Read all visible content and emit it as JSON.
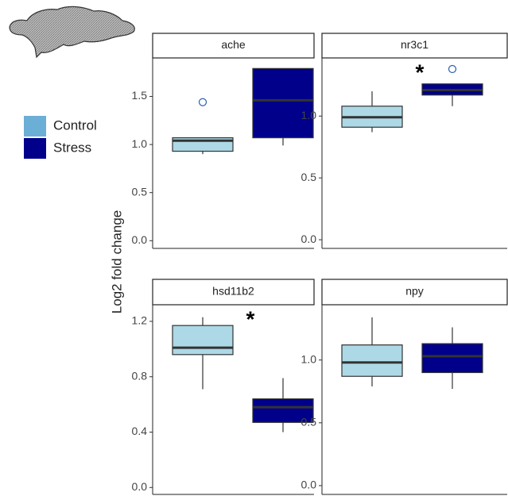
{
  "y_label": "Log2 fold change",
  "legend": [
    {
      "name": "Control",
      "color": "#add8e6"
    },
    {
      "name": "Stress",
      "color": "#00008b"
    }
  ],
  "chart_data": [
    {
      "type": "box",
      "title": "ache",
      "ylim": [
        -0.08,
        1.9
      ],
      "yticks": [
        {
          "value": 0,
          "label": "0.0"
        },
        {
          "value": 0.5,
          "label": "0.5"
        },
        {
          "value": 1,
          "label": "1.0"
        },
        {
          "value": 1.5,
          "label": "1.5"
        }
      ],
      "boxes": [
        {
          "whisker_low": 0.9,
          "q1": 0.93,
          "median": 1.04,
          "q3": 1.07,
          "whisker_high": 1.07,
          "outliers": [
            1.44
          ]
        },
        {
          "whisker_low": 0.99,
          "q1": 1.07,
          "median": 1.46,
          "q3": 1.79,
          "whisker_high": 1.79,
          "outliers": []
        }
      ]
    },
    {
      "type": "box",
      "title": "nr3c1",
      "ylim": [
        -0.07,
        1.47
      ],
      "annotation": "*",
      "yticks": [
        {
          "value": 0,
          "label": "0.0"
        },
        {
          "value": 0.5,
          "label": "0.5"
        },
        {
          "value": 1,
          "label": "1.0"
        }
      ],
      "boxes": [
        {
          "whisker_low": 0.87,
          "q1": 0.91,
          "median": 0.99,
          "q3": 1.08,
          "whisker_high": 1.2,
          "outliers": []
        },
        {
          "whisker_low": 1.08,
          "q1": 1.17,
          "median": 1.21,
          "q3": 1.26,
          "whisker_high": 1.26,
          "outliers": [
            1.38
          ]
        }
      ]
    },
    {
      "type": "box",
      "title": "hsd11b2",
      "ylim": [
        -0.05,
        1.32
      ],
      "annotation": "*",
      "yticks": [
        {
          "value": 0,
          "label": "0.0"
        },
        {
          "value": 0.4,
          "label": "0.4"
        },
        {
          "value": 0.8,
          "label": "0.8"
        },
        {
          "value": 1.2,
          "label": "1.2"
        }
      ],
      "boxes": [
        {
          "whisker_low": 0.71,
          "q1": 0.96,
          "median": 1.01,
          "q3": 1.17,
          "whisker_high": 1.23,
          "outliers": []
        },
        {
          "whisker_low": 0.4,
          "q1": 0.47,
          "median": 0.58,
          "q3": 0.64,
          "whisker_high": 0.79,
          "outliers": []
        }
      ]
    },
    {
      "type": "box",
      "title": "npy",
      "ylim": [
        -0.07,
        1.44
      ],
      "yticks": [
        {
          "value": 0,
          "label": "0.0"
        },
        {
          "value": 0.5,
          "label": "0.5"
        },
        {
          "value": 1,
          "label": "1.0"
        }
      ],
      "boxes": [
        {
          "whisker_low": 0.79,
          "q1": 0.87,
          "median": 0.98,
          "q3": 1.12,
          "whisker_high": 1.34,
          "outliers": []
        },
        {
          "whisker_low": 0.77,
          "q1": 0.9,
          "median": 1.03,
          "q3": 1.13,
          "whisker_high": 1.26,
          "outliers": []
        }
      ]
    }
  ]
}
